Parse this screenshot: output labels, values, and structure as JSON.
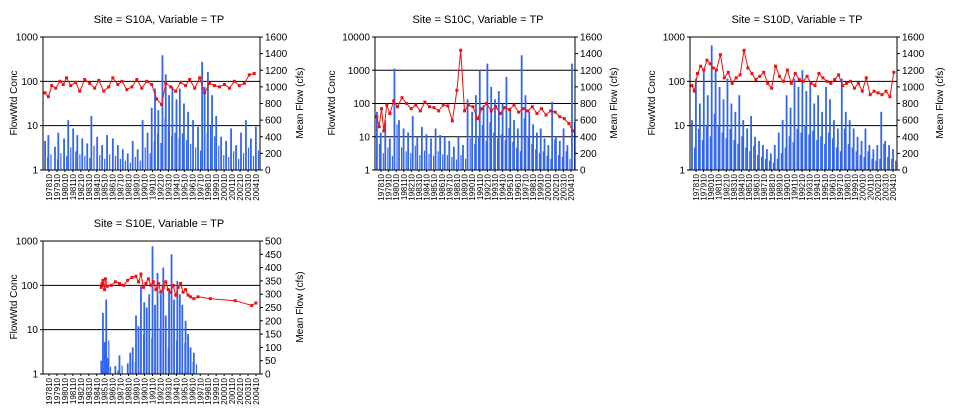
{
  "colors": {
    "flow": "#3366ee",
    "conc": "#ee1111",
    "axis": "#000000",
    "grid": "#000000"
  },
  "chart_data": [
    {
      "type": "bar+line",
      "title": "Site = S10A, Variable = TP",
      "ylabel_left": "FlowWtd  Conc",
      "ylabel_right": "Mean Flow (cfs)",
      "yscale_left": "log",
      "ylim_left": [
        1,
        1000
      ],
      "yticks_left": [
        "1",
        "10",
        "100",
        "1000"
      ],
      "ylim_right": [
        0,
        1600
      ],
      "yticks_right": [
        "0",
        "200",
        "400",
        "600",
        "800",
        "1000",
        "1200",
        "1400",
        "1600"
      ],
      "x_range": [
        1978.75,
        2005.0
      ],
      "xticks": [
        "197810",
        "197910",
        "198010",
        "198110",
        "198210",
        "198310",
        "198410",
        "198510",
        "198610",
        "198710",
        "198810",
        "198910",
        "199010",
        "199110",
        "199210",
        "199310",
        "199410",
        "199510",
        "199610",
        "199710",
        "199810",
        "199910",
        "200010",
        "200110",
        "200210",
        "200310",
        "200410"
      ],
      "flow_series": {
        "name": "Mean Flow (cfs)",
        "x": [
          1979.0,
          1979.4,
          1980.2,
          1980.6,
          1981.3,
          1981.8,
          1982.4,
          1982.9,
          1983.5,
          1984.1,
          1984.6,
          1985.3,
          1985.9,
          1986.5,
          1987.2,
          1987.8,
          1988.4,
          1989.0,
          1989.6,
          1990.2,
          1990.8,
          1991.4,
          1991.9,
          1992.3,
          1992.7,
          1993.2,
          1993.6,
          1994.0,
          1994.4,
          1994.9,
          1995.3,
          1995.8,
          1996.3,
          1996.9,
          1997.5,
          1998.0,
          1998.3,
          1998.7,
          1999.2,
          1999.7,
          2000.3,
          2000.9,
          2001.5,
          2002.1,
          2002.7,
          2003.3,
          2003.9,
          2004.5
        ],
        "values": [
          350,
          420,
          280,
          450,
          380,
          600,
          500,
          420,
          380,
          320,
          650,
          400,
          300,
          420,
          380,
          300,
          250,
          200,
          350,
          250,
          600,
          450,
          750,
          980,
          720,
          1380,
          1150,
          900,
          1000,
          850,
          980,
          800,
          700,
          600,
          520,
          1300,
          1000,
          1180,
          900,
          650,
          400,
          350,
          500,
          300,
          450,
          600,
          380,
          520
        ]
      },
      "conc_series": {
        "name": "FlowWtd Conc",
        "x": [
          1979.0,
          1979.4,
          1979.8,
          1980.3,
          1980.8,
          1981.2,
          1981.6,
          1982.1,
          1982.7,
          1983.2,
          1983.8,
          1984.4,
          1985.0,
          1985.5,
          1986.1,
          1986.7,
          1987.2,
          1987.8,
          1988.3,
          1988.9,
          1989.5,
          1990.1,
          1990.7,
          1991.3,
          1991.9,
          1992.5,
          1993.1,
          1993.6,
          1994.2,
          1994.8,
          1995.4,
          1996.0,
          1996.5,
          1997.1,
          1997.7,
          1998.3,
          1998.9,
          1999.5,
          2000.1,
          2000.7,
          2001.3,
          2001.9,
          2002.5,
          2003.1,
          2003.7,
          2004.3
        ],
        "values": [
          55,
          45,
          80,
          70,
          100,
          85,
          120,
          80,
          95,
          60,
          110,
          90,
          70,
          105,
          60,
          75,
          120,
          85,
          100,
          65,
          75,
          110,
          70,
          100,
          85,
          40,
          30,
          90,
          75,
          60,
          95,
          80,
          110,
          70,
          120,
          55,
          90,
          80,
          75,
          85,
          70,
          100,
          80,
          90,
          140,
          150
        ]
      }
    },
    {
      "type": "bar+line",
      "title": "Site = S10C, Variable = TP",
      "ylabel_left": "FlowWtd  Conc",
      "ylabel_right": "Mean Flow (cfs)",
      "yscale_left": "log",
      "ylim_left": [
        1,
        10000
      ],
      "yticks_left": [
        "1",
        "10",
        "100",
        "1000",
        "10000"
      ],
      "ylim_right": [
        0,
        1600
      ],
      "yticks_right": [
        "0",
        "200",
        "400",
        "600",
        "800",
        "1000",
        "1200",
        "1400",
        "1600"
      ],
      "x_range": [
        1978.75,
        2005.0
      ],
      "xticks": [
        "197810",
        "197910",
        "198010",
        "198110",
        "198210",
        "198310",
        "198410",
        "198510",
        "198610",
        "198710",
        "198810",
        "198910",
        "199010",
        "199110",
        "199210",
        "199310",
        "199410",
        "199510",
        "199610",
        "199710",
        "199810",
        "199910",
        "200010",
        "200210",
        "200310",
        "200410"
      ],
      "flow_series": {
        "name": "Mean Flow (cfs)",
        "x": [
          1979.0,
          1979.5,
          1980.1,
          1980.7,
          1981.3,
          1981.9,
          1982.5,
          1983.1,
          1983.7,
          1984.3,
          1984.9,
          1985.5,
          1986.1,
          1986.7,
          1987.3,
          1987.9,
          1988.5,
          1989.1,
          1989.7,
          1990.3,
          1990.9,
          1991.5,
          1992.0,
          1992.5,
          1993.0,
          1993.5,
          1994.0,
          1994.5,
          1995.0,
          1995.5,
          1996.0,
          1996.5,
          1997.0,
          1997.5,
          1998.0,
          1998.5,
          1999.0,
          1999.5,
          2000.0,
          2000.5,
          2001.0,
          2001.5,
          2002.0,
          2002.5,
          2003.0,
          2003.5,
          2004.0,
          2004.6
        ],
        "values": [
          700,
          450,
          600,
          380,
          1220,
          600,
          500,
          450,
          650,
          400,
          520,
          430,
          380,
          500,
          420,
          400,
          350,
          280,
          400,
          300,
          850,
          700,
          900,
          1200,
          780,
          1280,
          1000,
          850,
          950,
          800,
          1120,
          750,
          600,
          500,
          1380,
          900,
          700,
          550,
          450,
          500,
          380,
          300,
          820,
          400,
          350,
          500,
          300,
          1280
        ]
      },
      "conc_series": {
        "name": "FlowWtd Conc",
        "x": [
          1979.0,
          1979.3,
          1979.6,
          1979.9,
          1980.3,
          1980.7,
          1981.2,
          1981.7,
          1982.3,
          1982.9,
          1983.5,
          1984.1,
          1984.7,
          1985.3,
          1985.9,
          1986.5,
          1987.1,
          1987.7,
          1988.3,
          1988.9,
          1989.5,
          1990.0,
          1990.5,
          1991.0,
          1991.6,
          1992.2,
          1992.8,
          1993.4,
          1994.0,
          1994.6,
          1995.2,
          1995.8,
          1996.4,
          1997.0,
          1997.6,
          1998.2,
          1998.8,
          1999.4,
          2000.0,
          2000.6,
          2001.2,
          2001.8,
          2002.4,
          2003.0,
          2003.6,
          2004.2,
          2004.7
        ],
        "values": [
          40,
          20,
          70,
          15,
          90,
          50,
          120,
          80,
          150,
          100,
          70,
          90,
          60,
          110,
          80,
          75,
          60,
          90,
          85,
          30,
          250,
          4000,
          60,
          90,
          80,
          35,
          70,
          100,
          60,
          80,
          50,
          75,
          65,
          90,
          55,
          70,
          60,
          80,
          50,
          70,
          45,
          60,
          55,
          40,
          35,
          25,
          15
        ]
      }
    },
    {
      "type": "bar+line",
      "title": "Site = S10D, Variable = TP",
      "ylabel_left": "FlowWtd  Conc",
      "ylabel_right": "Mean Flow (cfs)",
      "yscale_left": "log",
      "ylim_left": [
        1,
        1000
      ],
      "yticks_left": [
        "1",
        "10",
        "100",
        "1000"
      ],
      "ylim_right": [
        0,
        1600
      ],
      "yticks_right": [
        "0",
        "200",
        "400",
        "600",
        "800",
        "1000",
        "1200",
        "1400",
        "1600"
      ],
      "x_range": [
        1978.75,
        2005.0
      ],
      "xticks": [
        "197810",
        "197910",
        "198010",
        "198110",
        "198210",
        "198310",
        "198410",
        "198510",
        "198610",
        "198710",
        "198810",
        "198910",
        "199010",
        "199110",
        "199210",
        "199310",
        "199410",
        "199510",
        "199610",
        "199710",
        "199810",
        "199910",
        "200010",
        "200110",
        "200210",
        "200310",
        "200410"
      ],
      "flow_series": {
        "name": "Mean Flow (cfs)",
        "x": [
          1979.0,
          1979.5,
          1980.0,
          1980.5,
          1981.0,
          1981.5,
          1982.0,
          1982.5,
          1983.0,
          1983.5,
          1984.0,
          1984.5,
          1985.0,
          1985.5,
          1986.0,
          1986.5,
          1987.0,
          1987.5,
          1988.0,
          1988.5,
          1989.0,
          1989.5,
          1990.0,
          1990.5,
          1991.0,
          1991.5,
          1992.0,
          1992.5,
          1993.0,
          1993.5,
          1994.0,
          1994.5,
          1995.0,
          1995.5,
          1996.0,
          1996.5,
          1997.0,
          1997.5,
          1998.0,
          1998.5,
          1999.0,
          1999.5,
          2000.0,
          2000.5,
          2001.0,
          2001.5,
          2002.0,
          2002.5,
          2003.0,
          2003.5,
          2004.0,
          2004.5
        ],
        "values": [
          600,
          1100,
          800,
          1200,
          900,
          1500,
          1200,
          1000,
          850,
          1100,
          800,
          700,
          900,
          600,
          500,
          650,
          400,
          350,
          300,
          250,
          200,
          300,
          450,
          600,
          900,
          750,
          1100,
          1000,
          1200,
          950,
          1050,
          800,
          900,
          700,
          1000,
          850,
          600,
          500,
          1100,
          700,
          600,
          500,
          400,
          350,
          500,
          300,
          250,
          300,
          700,
          350,
          300,
          250
        ]
      },
      "conc_series": {
        "name": "FlowWtd Conc",
        "x": [
          1979.0,
          1979.3,
          1979.7,
          1980.1,
          1980.5,
          1980.9,
          1981.3,
          1981.7,
          1982.1,
          1982.6,
          1983.1,
          1983.6,
          1984.1,
          1984.6,
          1985.1,
          1985.6,
          1986.1,
          1986.6,
          1987.1,
          1987.6,
          1988.1,
          1988.6,
          1989.1,
          1989.6,
          1990.1,
          1990.6,
          1991.1,
          1991.6,
          1992.1,
          1992.6,
          1993.1,
          1993.6,
          1994.1,
          1994.6,
          1995.1,
          1995.6,
          1996.1,
          1996.6,
          1997.1,
          1997.6,
          1998.1,
          1998.6,
          1999.1,
          1999.6,
          2000.1,
          2000.6,
          2001.1,
          2001.6,
          2002.1,
          2002.6,
          2003.1,
          2003.6,
          2004.1,
          2004.6
        ],
        "values": [
          80,
          60,
          150,
          220,
          180,
          300,
          250,
          200,
          180,
          400,
          120,
          160,
          90,
          120,
          140,
          500,
          200,
          150,
          110,
          130,
          160,
          90,
          70,
          220,
          130,
          100,
          180,
          90,
          150,
          110,
          100,
          130,
          90,
          80,
          150,
          120,
          100,
          90,
          110,
          140,
          80,
          90,
          100,
          70,
          90,
          60,
          120,
          50,
          60,
          55,
          50,
          60,
          45,
          160
        ]
      }
    },
    {
      "type": "bar+line",
      "title": "Site = S10E, Variable = TP",
      "ylabel_left": "FlowWtd  Conc",
      "ylabel_right": "Mean Flow (cfs)",
      "yscale_left": "log",
      "ylim_left": [
        1,
        1000
      ],
      "yticks_left": [
        "1",
        "10",
        "100",
        "1000"
      ],
      "ylim_right": [
        0,
        500
      ],
      "yticks_right": [
        "0",
        "50",
        "100",
        "150",
        "200",
        "250",
        "300",
        "350",
        "400",
        "450",
        "500"
      ],
      "x_range": [
        1978.75,
        2005.0
      ],
      "xticks": [
        "197810",
        "197910",
        "198010",
        "198110",
        "198210",
        "198310",
        "198410",
        "198510",
        "198610",
        "198710",
        "198810",
        "198910",
        "199010",
        "199110",
        "199210",
        "199310",
        "199410",
        "199510",
        "199610",
        "199710",
        "199810",
        "199910",
        "200010",
        "200110",
        "200210",
        "200310",
        "200410"
      ],
      "flow_series": {
        "name": "Mean Flow (cfs)",
        "x": [
          1985.8,
          1986.0,
          1986.2,
          1986.4,
          1986.6,
          1987.5,
          1988.0,
          1989.0,
          1989.3,
          1989.6,
          1990.0,
          1990.3,
          1990.6,
          1991.0,
          1991.3,
          1991.6,
          1992.0,
          1992.3,
          1992.6,
          1993.0,
          1993.3,
          1993.6,
          1994.0,
          1994.3,
          1994.6,
          1995.0,
          1995.3,
          1995.6,
          1996.0,
          1996.3,
          1996.6,
          1997.0
        ],
        "values": [
          50,
          230,
          120,
          280,
          60,
          30,
          70,
          40,
          80,
          100,
          220,
          180,
          330,
          270,
          250,
          300,
          480,
          260,
          380,
          300,
          400,
          220,
          320,
          450,
          280,
          350,
          300,
          260,
          200,
          150,
          100,
          80
        ]
      },
      "conc_series": {
        "name": "FlowWtd Conc",
        "x": [
          1985.8,
          1985.9,
          1986.0,
          1986.1,
          1986.2,
          1986.3,
          1986.5,
          1987.0,
          1987.5,
          1988.0,
          1988.5,
          1989.0,
          1989.5,
          1990.0,
          1990.3,
          1990.6,
          1990.9,
          1991.2,
          1991.5,
          1991.8,
          1992.1,
          1992.4,
          1992.7,
          1993.0,
          1993.3,
          1993.6,
          1993.9,
          1994.2,
          1994.5,
          1994.8,
          1995.1,
          1995.4,
          1995.7,
          1996.0,
          1996.3,
          1996.6,
          1997.0,
          1997.5,
          1999.0,
          2002.0,
          2004.0,
          2004.5
        ],
        "values": [
          90,
          110,
          130,
          100,
          80,
          140,
          95,
          100,
          120,
          110,
          100,
          130,
          150,
          160,
          120,
          180,
          90,
          110,
          140,
          100,
          120,
          80,
          110,
          70,
          90,
          120,
          80,
          70,
          100,
          60,
          90,
          110,
          70,
          80,
          60,
          55,
          50,
          55,
          50,
          45,
          35,
          40
        ]
      }
    }
  ]
}
